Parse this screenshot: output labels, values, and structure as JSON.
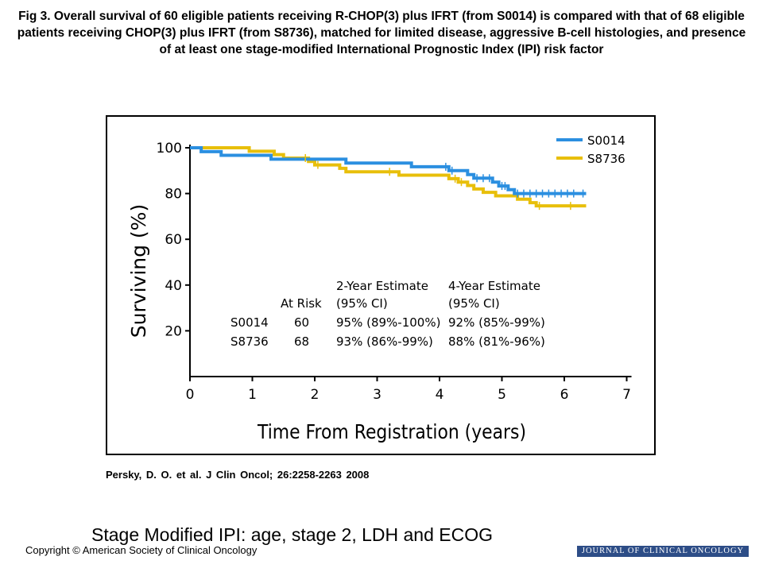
{
  "figure": {
    "title": "Fig 3. Overall survival of 60 eligible patients receiving R-CHOP(3) plus IFRT (from S0014) is compared with that of 68 eligible patients receiving CHOP(3) plus IFRT (from S8736), matched for limited disease, aggressive B-cell histologies, and presence of at least one stage-modified International Prognostic Index (IPI) risk factor",
    "citation": "Persky, D. O. et al. J Clin Oncol; 26:2258-2263 2008",
    "footnote": "Stage Modified IPI: age, stage 2, LDH and ECOG",
    "copyright": "Copyright © American Society of Clinical Oncology",
    "journal_badge": "JOURNAL OF CLINICAL ONCOLOGY"
  },
  "chart_data": {
    "type": "line",
    "step": true,
    "xlabel": "Time From Registration (years)",
    "ylabel": "Surviving (%)",
    "xlim": [
      0,
      7
    ],
    "ylim": [
      0,
      100
    ],
    "x_ticks": [
      0,
      1,
      2,
      3,
      4,
      5,
      6,
      7
    ],
    "y_ticks": [
      20,
      40,
      60,
      80,
      100
    ],
    "grid": false,
    "legend_position": "top-right",
    "series": [
      {
        "name": "S0014",
        "color": "#2b8fe0",
        "points": [
          [
            0,
            100
          ],
          [
            0.18,
            98.3
          ],
          [
            0.5,
            96.7
          ],
          [
            1.3,
            95
          ],
          [
            2.5,
            93.3
          ],
          [
            3.55,
            91.7
          ],
          [
            4.15,
            90
          ],
          [
            4.45,
            88.3
          ],
          [
            4.55,
            86.7
          ],
          [
            4.85,
            85
          ],
          [
            4.95,
            83.3
          ],
          [
            5.1,
            81.7
          ],
          [
            5.2,
            80
          ],
          [
            6.35,
            80
          ]
        ]
      },
      {
        "name": "S8736",
        "color": "#e8bf0a",
        "points": [
          [
            0,
            100
          ],
          [
            0.45,
            100
          ],
          [
            0.95,
            98.5
          ],
          [
            1.35,
            97
          ],
          [
            1.5,
            95.5
          ],
          [
            1.9,
            94
          ],
          [
            2.0,
            92.5
          ],
          [
            2.4,
            91
          ],
          [
            2.5,
            89.5
          ],
          [
            3.35,
            88
          ],
          [
            4.15,
            86.5
          ],
          [
            4.3,
            85
          ],
          [
            4.45,
            83.5
          ],
          [
            4.55,
            82
          ],
          [
            4.7,
            80.5
          ],
          [
            4.9,
            79
          ],
          [
            5.25,
            77.5
          ],
          [
            5.45,
            76
          ],
          [
            5.55,
            74.6
          ],
          [
            6.35,
            74.6
          ]
        ]
      }
    ],
    "censor_marks": {
      "S0014": [
        4.1,
        4.2,
        4.6,
        4.7,
        4.8,
        5.0,
        5.05,
        5.25,
        5.35,
        5.45,
        5.55,
        5.65,
        5.75,
        5.85,
        5.95,
        6.05,
        6.15,
        6.3
      ],
      "S8736": [
        1.85,
        2.05,
        3.2,
        4.25,
        4.35,
        5.6,
        6.1
      ]
    },
    "table": {
      "headers": [
        "",
        "At Risk",
        "2-Year Estimate\n(95% CI)",
        "4-Year Estimate\n(95% CI)"
      ],
      "rows": [
        [
          "S0014",
          "60",
          "95% (89%-100%)",
          "92% (85%-99%)"
        ],
        [
          "S8736",
          "68",
          "93% (86%-99%)",
          "88% (81%-96%)"
        ]
      ]
    }
  }
}
